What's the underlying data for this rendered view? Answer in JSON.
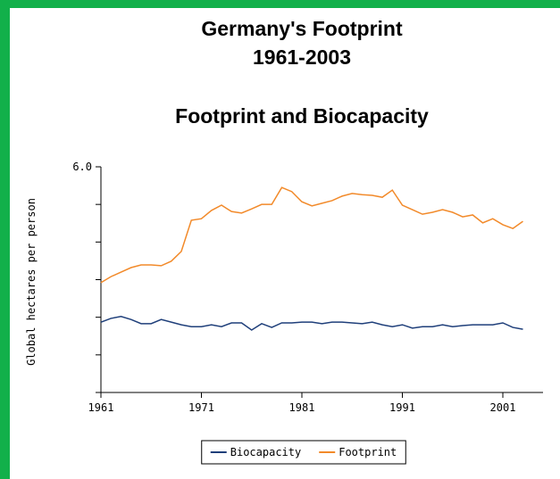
{
  "chart_data": {
    "type": "line",
    "title": "Germany's Footprint",
    "subtitle": "1961-2003",
    "chart_title": "Footprint and Biocapacity",
    "ylabel": "Global hectares per person",
    "x": [
      1961,
      1962,
      1963,
      1964,
      1965,
      1966,
      1967,
      1968,
      1969,
      1970,
      1971,
      1972,
      1973,
      1974,
      1975,
      1976,
      1977,
      1978,
      1979,
      1980,
      1981,
      1982,
      1983,
      1984,
      1985,
      1986,
      1987,
      1988,
      1989,
      1990,
      1991,
      1992,
      1993,
      1994,
      1995,
      1996,
      1997,
      1998,
      1999,
      2000,
      2001,
      2002,
      2003
    ],
    "series": [
      {
        "name": "Biocapacity",
        "color": "#1f3f7a",
        "values": [
          1.87,
          1.97,
          2.02,
          1.94,
          1.83,
          1.83,
          1.94,
          1.87,
          1.8,
          1.75,
          1.75,
          1.8,
          1.75,
          1.85,
          1.85,
          1.66,
          1.83,
          1.73,
          1.85,
          1.85,
          1.87,
          1.87,
          1.83,
          1.87,
          1.87,
          1.85,
          1.83,
          1.87,
          1.8,
          1.75,
          1.8,
          1.71,
          1.75,
          1.75,
          1.8,
          1.75,
          1.78,
          1.8,
          1.8,
          1.8,
          1.85,
          1.73,
          1.68
        ]
      },
      {
        "name": "Footprint",
        "color": "#f28a2a",
        "values": [
          2.92,
          3.08,
          3.2,
          3.32,
          3.39,
          3.39,
          3.37,
          3.49,
          3.75,
          4.58,
          4.62,
          4.84,
          4.98,
          4.81,
          4.77,
          4.88,
          5.0,
          5.0,
          5.45,
          5.34,
          5.07,
          4.96,
          5.03,
          5.1,
          5.22,
          5.29,
          5.26,
          5.24,
          5.19,
          5.38,
          4.98,
          4.86,
          4.74,
          4.79,
          4.86,
          4.79,
          4.67,
          4.72,
          4.51,
          4.62,
          4.46,
          4.36,
          4.55
        ]
      }
    ],
    "xlim": [
      1961,
      2005
    ],
    "xticks": [
      1961,
      1971,
      1981,
      1991,
      2001
    ],
    "ylim": [
      0,
      6
    ],
    "yticks": [
      {
        "value": 6,
        "label": "6.0"
      }
    ],
    "yminor_ticks": [
      0,
      1,
      2,
      3,
      4,
      5
    ],
    "legend": "bottom"
  }
}
